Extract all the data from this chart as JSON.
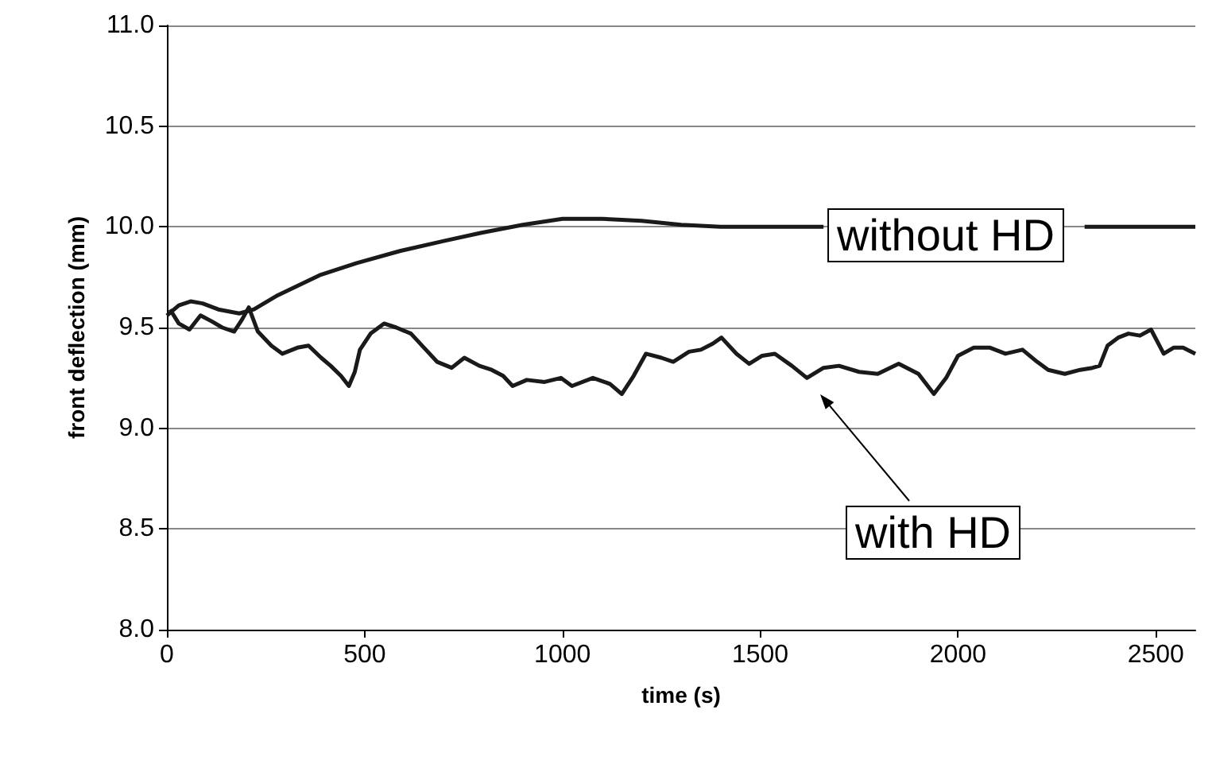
{
  "chart_data": {
    "type": "line",
    "xlabel": "time (s)",
    "ylabel": "front deflection (mm)",
    "xlim": [
      0,
      2600
    ],
    "xticks": [
      0,
      500,
      1000,
      1500,
      2000,
      2500
    ],
    "ylim": [
      8,
      11
    ],
    "yticks": [
      {
        "value": 8,
        "label": "8.0"
      },
      {
        "value": 8.5,
        "label": "8.5"
      },
      {
        "value": 9,
        "label": "9.0"
      },
      {
        "value": 9.5,
        "label": "9.5"
      },
      {
        "value": 10,
        "label": "10.0"
      },
      {
        "value": 10.5,
        "label": "10.5"
      },
      {
        "value": 11,
        "label": "11.0"
      }
    ],
    "grid": "y",
    "marker": "none",
    "line_style": "solid",
    "series": [
      {
        "color": "#1a1a1a",
        "x": [
          0,
          30,
          60,
          90,
          130,
          183,
          220,
          280,
          386,
          480,
          589,
          700,
          793,
          900,
          1000,
          1100,
          1200,
          1300,
          1400,
          1500,
          1600,
          1660,
          1800,
          2000,
          2200,
          2320,
          2400,
          2600
        ],
        "values": [
          9.56,
          9.61,
          9.63,
          9.62,
          9.59,
          9.57,
          9.59,
          9.66,
          9.76,
          9.82,
          9.88,
          9.93,
          9.97,
          10.01,
          10.04,
          10.04,
          10.03,
          10.01,
          10.0,
          10.0,
          10.0,
          10.0,
          null,
          null,
          null,
          10.0,
          10.0,
          10.0
        ]
      },
      {
        "color": "#1a1a1a",
        "x": [
          8,
          30,
          57,
          85,
          114,
          140,
          170,
          190,
          207,
          230,
          264,
          292,
          330,
          358,
          390,
          414,
          440,
          460,
          475,
          488,
          515,
          549,
          580,
          617,
          650,
          683,
          720,
          752,
          790,
          821,
          850,
          874,
          910,
          955,
          996,
          1024,
          1077,
          1120,
          1150,
          1180,
          1211,
          1250,
          1280,
          1320,
          1350,
          1380,
          1402,
          1440,
          1472,
          1505,
          1537,
          1580,
          1618,
          1660,
          1699,
          1750,
          1797,
          1850,
          1900,
          1939,
          1970,
          2000,
          2040,
          2081,
          2120,
          2163,
          2200,
          2228,
          2270,
          2309,
          2340,
          2358,
          2378,
          2405,
          2431,
          2460,
          2488,
          2520,
          2545,
          2569,
          2600
        ],
        "values": [
          9.59,
          9.52,
          9.49,
          9.56,
          9.53,
          9.5,
          9.48,
          9.54,
          9.6,
          9.48,
          9.41,
          9.37,
          9.4,
          9.41,
          9.35,
          9.31,
          9.26,
          9.21,
          9.28,
          9.39,
          9.47,
          9.52,
          9.5,
          9.47,
          9.4,
          9.33,
          9.3,
          9.35,
          9.31,
          9.29,
          9.26,
          9.21,
          9.24,
          9.23,
          9.25,
          9.21,
          9.25,
          9.22,
          9.17,
          9.26,
          9.37,
          9.35,
          9.33,
          9.38,
          9.39,
          9.42,
          9.45,
          9.37,
          9.32,
          9.36,
          9.37,
          9.31,
          9.25,
          9.3,
          9.31,
          9.28,
          9.27,
          9.32,
          9.27,
          9.17,
          9.25,
          9.36,
          9.4,
          9.4,
          9.37,
          9.39,
          9.33,
          9.29,
          9.27,
          9.29,
          9.3,
          9.31,
          9.41,
          9.45,
          9.47,
          9.46,
          9.49,
          9.37,
          9.4,
          9.4,
          9.37
        ]
      }
    ],
    "annotations": [
      "without HD",
      "with HD"
    ]
  }
}
